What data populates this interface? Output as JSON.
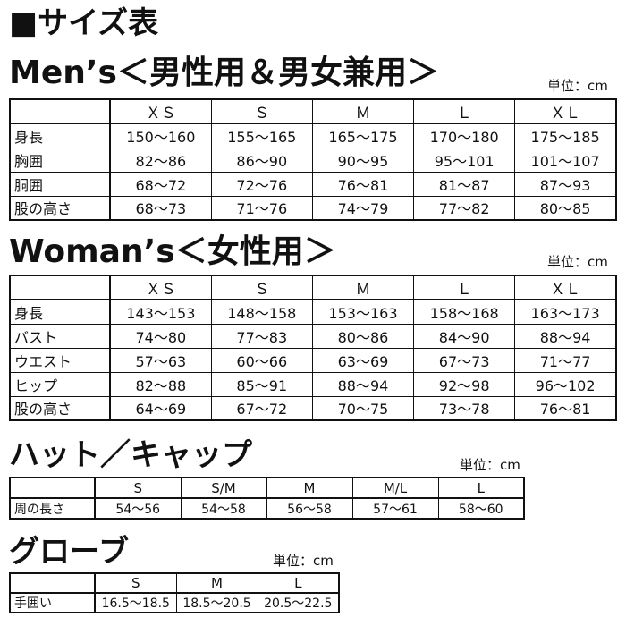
{
  "title": "■サイズ表",
  "sections": [
    {
      "heading": "Men’s＜男性用＆男女兼用＞",
      "unit": "単位：cm",
      "sizes": [
        "ＸＳ",
        "Ｓ",
        "Ｍ",
        "Ｌ",
        "ＸＬ"
      ],
      "rows": [
        {
          "label": "身長",
          "values": [
            "150～160",
            "155～165",
            "165～175",
            "170～180",
            "175～185"
          ]
        },
        {
          "label": "胸囲",
          "values": [
            "82～86",
            "86～90",
            "90～95",
            "95～101",
            "101～107"
          ]
        },
        {
          "label": "胴囲",
          "values": [
            "68～72",
            "72～76",
            "76～81",
            "81～87",
            "87～93"
          ]
        },
        {
          "label": "股の高さ",
          "values": [
            "68～73",
            "71～76",
            "74～79",
            "77～82",
            "80～85"
          ]
        }
      ]
    },
    {
      "heading": "Woman’s＜女性用＞",
      "unit": "単位：cm",
      "sizes": [
        "ＸＳ",
        "Ｓ",
        "Ｍ",
        "Ｌ",
        "ＸＬ"
      ],
      "rows": [
        {
          "label": "身長",
          "values": [
            "143～153",
            "148～158",
            "153～163",
            "158～168",
            "163～173"
          ]
        },
        {
          "label": "バスト",
          "values": [
            "74～80",
            "77～83",
            "80～86",
            "84～90",
            "88～94"
          ]
        },
        {
          "label": "ウエスト",
          "values": [
            "57～63",
            "60～66",
            "63～69",
            "67～73",
            "71～77"
          ]
        },
        {
          "label": "ヒップ",
          "values": [
            "82～88",
            "85～91",
            "88～94",
            "92～98",
            "96～102"
          ]
        },
        {
          "label": "股の高さ",
          "values": [
            "64～69",
            "67～72",
            "70～75",
            "73～78",
            "76～81"
          ]
        }
      ]
    },
    {
      "heading": "ハット／キャップ",
      "unit": "単位：cm",
      "sizes": [
        "S",
        "S/M",
        "M",
        "M/L",
        "L"
      ],
      "rows": [
        {
          "label": "周の長さ",
          "values": [
            "54～56",
            "54～58",
            "56～58",
            "57～61",
            "58～60"
          ]
        }
      ]
    },
    {
      "heading": "グローブ",
      "unit": "単位：cm",
      "sizes": [
        "S",
        "M",
        "L"
      ],
      "rows": [
        {
          "label": "手囲い",
          "values": [
            "16.5～18.5",
            "18.5～20.5",
            "20.5～22.5"
          ]
        }
      ]
    }
  ]
}
